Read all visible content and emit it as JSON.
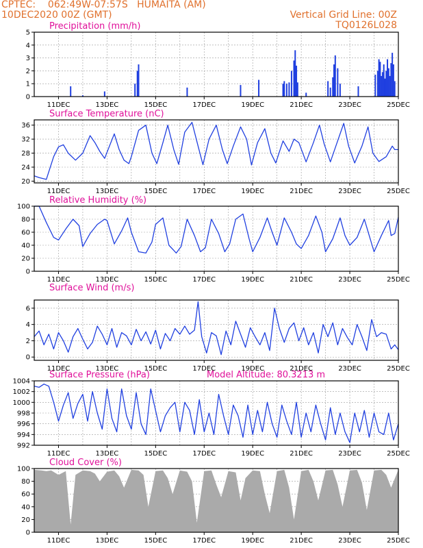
{
  "header": {
    "line1": "CPTEC:    062:49W-07:57S   HUMAITA (AM)",
    "line2": "10DEC2020 00Z (GMT)",
    "right1": "Vertical Grid Line: 00Z",
    "right2": "TQ0126L028"
  },
  "colors": {
    "header": "#e0702c",
    "title": "#e0109a",
    "series": "#1f3fe0",
    "cloud": "#aaaaaa",
    "grid": "#999999"
  },
  "x_axis": {
    "tick_labels": [
      "11DEC",
      "13DEC",
      "15DEC",
      "17DEC",
      "19DEC",
      "21DEC",
      "23DEC",
      "25DEC"
    ],
    "tick_days": [
      11,
      13,
      15,
      17,
      19,
      21,
      23,
      25
    ],
    "day_range": [
      10,
      25
    ]
  },
  "chart_data": [
    {
      "id": "precip",
      "type": "bar",
      "title": "Precipitation (mm/h)",
      "ylim": [
        0,
        5
      ],
      "yticks": [
        0,
        1,
        2,
        3,
        4,
        5
      ],
      "x_day": [
        11.5,
        12.0,
        12.9,
        14.15,
        14.25,
        14.3,
        16.3,
        18.5,
        19.25,
        20.25,
        20.3,
        20.4,
        20.5,
        20.6,
        20.7,
        20.75,
        20.8,
        20.85,
        21.2,
        22.1,
        22.2,
        22.3,
        22.35,
        22.4,
        22.5,
        22.6,
        23.35,
        24.05,
        24.15,
        24.2,
        24.25,
        24.3,
        24.35,
        24.4,
        24.45,
        24.5,
        24.55,
        24.6,
        24.65,
        24.7,
        24.75,
        24.8,
        24.85
      ],
      "values": [
        0.8,
        0.1,
        0.4,
        1.0,
        2.0,
        2.5,
        0.7,
        0.9,
        1.3,
        1.0,
        1.2,
        1.0,
        1.1,
        2.0,
        2.8,
        3.6,
        2.4,
        1.1,
        0.3,
        1.2,
        0.7,
        1.5,
        2.5,
        3.2,
        2.2,
        1.0,
        0.8,
        1.7,
        2.0,
        2.9,
        2.7,
        1.6,
        1.9,
        2.5,
        1.4,
        2.0,
        2.9,
        2.2,
        1.6,
        2.6,
        3.4,
        2.5,
        1.2
      ]
    },
    {
      "id": "temp",
      "type": "line",
      "title": "Surface Temperature (nC)",
      "ylim": [
        19.5,
        37.5
      ],
      "yticks": [
        20,
        24,
        28,
        32,
        36
      ],
      "x_day": [
        10.0,
        10.2,
        10.5,
        10.8,
        11.0,
        11.2,
        11.4,
        11.7,
        12.0,
        12.3,
        12.5,
        12.7,
        12.9,
        13.1,
        13.3,
        13.5,
        13.7,
        13.9,
        14.0,
        14.3,
        14.6,
        14.85,
        15.05,
        15.3,
        15.5,
        15.75,
        15.95,
        16.2,
        16.5,
        16.75,
        16.95,
        17.2,
        17.5,
        17.75,
        17.95,
        18.2,
        18.5,
        18.75,
        18.95,
        19.2,
        19.5,
        19.75,
        19.95,
        20.25,
        20.5,
        20.7,
        20.9,
        21.2,
        21.5,
        21.75,
        21.95,
        22.2,
        22.5,
        22.75,
        22.95,
        23.2,
        23.5,
        23.75,
        23.95,
        24.2,
        24.5,
        24.75,
        24.85,
        25.0
      ],
      "values": [
        21.5,
        21,
        20.5,
        27,
        29.8,
        30.4,
        28,
        26,
        28,
        33,
        31,
        28.5,
        26.5,
        30,
        33.5,
        29,
        26,
        25,
        27,
        34.5,
        36,
        28,
        25,
        31,
        36,
        29,
        24.8,
        34,
        36.8,
        30,
        24.7,
        32,
        36,
        29,
        25,
        30,
        35.5,
        32,
        24.6,
        31,
        35,
        28,
        25.2,
        31.5,
        28.5,
        32,
        31,
        25.5,
        31,
        36,
        30.5,
        25.5,
        31.5,
        36.5,
        30,
        25.2,
        30,
        35.5,
        28,
        25.6,
        27,
        30,
        29,
        29
      ]
    },
    {
      "id": "rh",
      "type": "line",
      "title": "Relative Humidity (%)",
      "ylim": [
        0,
        100
      ],
      "yticks": [
        0,
        20,
        40,
        60,
        80,
        100
      ],
      "x_day": [
        10.0,
        10.2,
        10.5,
        10.8,
        11.0,
        11.3,
        11.6,
        11.85,
        12.0,
        12.3,
        12.6,
        12.9,
        13.0,
        13.3,
        13.6,
        13.85,
        14.0,
        14.3,
        14.6,
        14.85,
        15.0,
        15.3,
        15.55,
        15.85,
        16.05,
        16.3,
        16.6,
        16.85,
        17.05,
        17.3,
        17.6,
        17.85,
        18.05,
        18.3,
        18.6,
        18.85,
        19.0,
        19.3,
        19.6,
        19.8,
        20.0,
        20.3,
        20.6,
        20.8,
        21.0,
        21.3,
        21.6,
        21.85,
        22.0,
        22.3,
        22.6,
        22.8,
        23.0,
        23.3,
        23.6,
        23.8,
        24.0,
        24.3,
        24.6,
        24.7,
        24.85,
        25.0
      ],
      "values": [
        100,
        100,
        75,
        52,
        48,
        65,
        80,
        70,
        38,
        58,
        72,
        80,
        78,
        42,
        62,
        82,
        60,
        30,
        28,
        45,
        72,
        82,
        40,
        28,
        38,
        80,
        55,
        30,
        36,
        80,
        58,
        30,
        42,
        80,
        88,
        50,
        30,
        52,
        82,
        60,
        40,
        82,
        60,
        42,
        35,
        55,
        85,
        60,
        30,
        50,
        82,
        55,
        40,
        52,
        80,
        55,
        30,
        55,
        78,
        55,
        58,
        83
      ]
    },
    {
      "id": "wind",
      "type": "line",
      "title": "Surface Wind (m/s)",
      "ylim": [
        -0.4,
        7
      ],
      "yticks": [
        0,
        2,
        4,
        6
      ],
      "x_day": [
        10.0,
        10.2,
        10.4,
        10.6,
        10.8,
        11.0,
        11.2,
        11.4,
        11.6,
        11.8,
        12.0,
        12.2,
        12.4,
        12.6,
        12.8,
        13.0,
        13.2,
        13.4,
        13.6,
        13.8,
        14.0,
        14.2,
        14.4,
        14.6,
        14.8,
        15.0,
        15.2,
        15.4,
        15.6,
        15.8,
        16.0,
        16.2,
        16.4,
        16.6,
        16.75,
        16.9,
        17.1,
        17.3,
        17.5,
        17.7,
        17.9,
        18.1,
        18.3,
        18.5,
        18.7,
        18.9,
        19.1,
        19.3,
        19.5,
        19.7,
        19.9,
        20.1,
        20.3,
        20.5,
        20.7,
        20.9,
        21.1,
        21.3,
        21.5,
        21.7,
        21.9,
        22.1,
        22.3,
        22.5,
        22.7,
        22.9,
        23.1,
        23.3,
        23.5,
        23.7,
        23.9,
        24.1,
        24.3,
        24.5,
        24.7,
        24.85,
        25.0
      ],
      "values": [
        2.5,
        3.2,
        1.5,
        2.8,
        1.0,
        3.0,
        2.0,
        0.6,
        2.5,
        3.5,
        2.2,
        1.0,
        1.8,
        3.8,
        2.8,
        1.5,
        3.5,
        1.2,
        3.0,
        2.6,
        1.5,
        3.4,
        2.0,
        3.1,
        1.6,
        3.3,
        1.0,
        2.9,
        2.0,
        3.5,
        2.8,
        3.8,
        2.8,
        3.3,
        6.8,
        2.5,
        0.5,
        3.0,
        2.6,
        0.3,
        3.2,
        1.5,
        4.4,
        2.8,
        1.2,
        3.6,
        2.5,
        1.5,
        3.0,
        0.8,
        6.0,
        3.5,
        1.8,
        3.5,
        4.2,
        2.0,
        3.6,
        1.5,
        3.0,
        0.5,
        4.0,
        2.5,
        4.2,
        1.5,
        3.5,
        2.4,
        1.5,
        4.0,
        2.5,
        0.8,
        4.6,
        2.5,
        3.0,
        2.8,
        1.0,
        1.5,
        0.9
      ]
    },
    {
      "id": "pressure",
      "type": "line",
      "title": "Surface Pressure (hPa)",
      "annotation": "Model Altitude: 80.3213 m",
      "ylim": [
        992,
        1004
      ],
      "yticks": [
        992,
        994,
        996,
        998,
        1000,
        1002,
        1004
      ],
      "x_day": [
        10.0,
        10.2,
        10.4,
        10.6,
        10.8,
        11.0,
        11.2,
        11.4,
        11.6,
        11.8,
        12.0,
        12.2,
        12.4,
        12.6,
        12.8,
        13.0,
        13.2,
        13.4,
        13.6,
        13.8,
        14.0,
        14.2,
        14.4,
        14.6,
        14.8,
        15.0,
        15.2,
        15.4,
        15.6,
        15.8,
        16.0,
        16.2,
        16.4,
        16.6,
        16.8,
        17.0,
        17.2,
        17.4,
        17.6,
        17.8,
        18.0,
        18.2,
        18.4,
        18.6,
        18.8,
        19.0,
        19.2,
        19.4,
        19.6,
        19.8,
        20.0,
        20.2,
        20.4,
        20.6,
        20.8,
        21.0,
        21.2,
        21.4,
        21.6,
        21.8,
        22.0,
        22.2,
        22.4,
        22.6,
        22.8,
        23.0,
        23.2,
        23.4,
        23.6,
        23.8,
        24.0,
        24.2,
        24.4,
        24.6,
        24.8,
        25.0
      ],
      "values": [
        1003,
        1002.8,
        1003.4,
        1003,
        1000,
        996.5,
        999.5,
        1001.8,
        997,
        999.8,
        1001.5,
        996.5,
        1002,
        998,
        995,
        1002.5,
        997,
        994.5,
        1002.5,
        997.5,
        995,
        1001.8,
        996,
        994,
        1002.5,
        998.5,
        994.5,
        997.5,
        999,
        1000,
        994.5,
        1000,
        998.5,
        994,
        1000.5,
        994.5,
        998,
        994,
        1001.5,
        997.5,
        994,
        999.5,
        997.5,
        993.5,
        999.5,
        994,
        998.5,
        994.5,
        1000,
        996,
        993.5,
        999.5,
        996.5,
        994,
        1000,
        993.5,
        998,
        994.5,
        999.5,
        996,
        993,
        999,
        994,
        998,
        994.5,
        992.5,
        998,
        994.5,
        998.5,
        993.5,
        998,
        994.5,
        994,
        998,
        993,
        996
      ]
    },
    {
      "id": "cloud",
      "type": "area",
      "title": "Cloud Cover (%)",
      "ylim": [
        0,
        100
      ],
      "yticks": [
        0,
        20,
        40,
        60,
        80,
        100
      ],
      "x_day": [
        10.0,
        10.3,
        10.5,
        10.7,
        11.0,
        11.3,
        11.5,
        11.7,
        12.0,
        12.3,
        12.5,
        12.7,
        13.0,
        13.3,
        13.5,
        13.7,
        14.0,
        14.3,
        14.5,
        14.7,
        15.0,
        15.3,
        15.5,
        15.7,
        16.0,
        16.3,
        16.5,
        16.7,
        17.0,
        17.3,
        17.5,
        17.7,
        18.0,
        18.3,
        18.5,
        18.7,
        19.0,
        19.3,
        19.5,
        19.7,
        20.0,
        20.3,
        20.5,
        20.7,
        21.0,
        21.3,
        21.5,
        21.7,
        22.0,
        22.3,
        22.5,
        22.7,
        23.0,
        23.3,
        23.5,
        23.7,
        24.0,
        24.3,
        24.5,
        24.7,
        25.0
      ],
      "values": [
        98,
        97,
        96,
        97,
        90,
        96,
        12,
        90,
        97,
        96,
        92,
        80,
        95,
        97,
        88,
        70,
        98,
        97,
        90,
        40,
        96,
        97,
        85,
        60,
        97,
        95,
        80,
        15,
        96,
        97,
        75,
        55,
        96,
        94,
        50,
        85,
        97,
        96,
        60,
        30,
        96,
        98,
        70,
        20,
        96,
        98,
        80,
        50,
        97,
        98,
        75,
        40,
        97,
        98,
        78,
        35,
        97,
        98,
        90,
        70,
        98
      ]
    }
  ]
}
